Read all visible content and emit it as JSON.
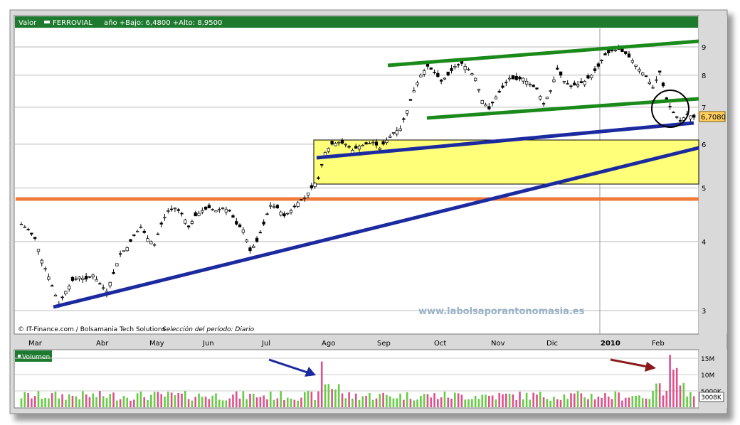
{
  "header": {
    "label": "Valor",
    "ticker": "FERROVIAL",
    "stats": "año +Bajo: 6,4800 +Alto: 8,9500"
  },
  "footer": {
    "credit": "© IT-Finance.com / Bolsamania Tech Solutions",
    "period": "Selección del período: Diario"
  },
  "watermark": "www.labolsaporantonomasia.es",
  "volume_label": "Volumen",
  "colors": {
    "up_candle": "#ffffff",
    "down_candle": "#000000",
    "trend_green": "#1a8a1a",
    "trend_blue": "#1c2aa0",
    "support_orange": "#f07a3a",
    "zone_yellow": "#ffff7a",
    "volume_up": "#66cc44",
    "volume_down": "#e0508a",
    "header_green": "#1e7a2e"
  },
  "chart_data": {
    "type": "candlestick",
    "ticker": "FERROVIAL",
    "x_tick_labels": [
      "Mar",
      "Abr",
      "May",
      "Jun",
      "Jul",
      "Ago",
      "Sep",
      "Oct",
      "Nov",
      "Dic",
      "2010",
      "Feb"
    ],
    "y_tick_labels": [
      "3",
      "4",
      "5",
      "6",
      "7",
      "8",
      "9"
    ],
    "y_scale": "log",
    "last_price": "6,7080",
    "price_path": [
      [
        0,
        4.3
      ],
      [
        2,
        4.2
      ],
      [
        4,
        4.05
      ],
      [
        6,
        3.7
      ],
      [
        8,
        3.45
      ],
      [
        10,
        3.2
      ],
      [
        11,
        3.08
      ],
      [
        13,
        3.25
      ],
      [
        15,
        3.4
      ],
      [
        17,
        3.45
      ],
      [
        19,
        3.42
      ],
      [
        21,
        3.48
      ],
      [
        23,
        3.35
      ],
      [
        25,
        3.25
      ],
      [
        27,
        3.5
      ],
      [
        29,
        3.8
      ],
      [
        31,
        3.9
      ],
      [
        33,
        4.1
      ],
      [
        35,
        4.25
      ],
      [
        37,
        4.05
      ],
      [
        39,
        3.95
      ],
      [
        41,
        4.3
      ],
      [
        43,
        4.55
      ],
      [
        45,
        4.6
      ],
      [
        47,
        4.5
      ],
      [
        49,
        4.25
      ],
      [
        51,
        4.45
      ],
      [
        53,
        4.55
      ],
      [
        55,
        4.6
      ],
      [
        57,
        4.55
      ],
      [
        59,
        4.6
      ],
      [
        61,
        4.55
      ],
      [
        63,
        4.3
      ],
      [
        65,
        4.2
      ],
      [
        67,
        3.85
      ],
      [
        69,
        4.0
      ],
      [
        71,
        4.3
      ],
      [
        73,
        4.65
      ],
      [
        75,
        4.6
      ],
      [
        77,
        4.45
      ],
      [
        79,
        4.55
      ],
      [
        81,
        4.7
      ],
      [
        83,
        4.8
      ],
      [
        85,
        5.0
      ],
      [
        87,
        5.2
      ],
      [
        89,
        5.8
      ],
      [
        91,
        6.0
      ],
      [
        93,
        6.05
      ],
      [
        95,
        6.0
      ],
      [
        97,
        5.85
      ],
      [
        99,
        5.95
      ],
      [
        101,
        6.0
      ],
      [
        103,
        6.05
      ],
      [
        105,
        5.9
      ],
      [
        107,
        6.1
      ],
      [
        109,
        6.3
      ],
      [
        111,
        6.4
      ],
      [
        113,
        6.9
      ],
      [
        115,
        7.5
      ],
      [
        117,
        8.0
      ],
      [
        119,
        8.3
      ],
      [
        121,
        8.1
      ],
      [
        123,
        7.8
      ],
      [
        125,
        8.0
      ],
      [
        127,
        8.3
      ],
      [
        129,
        8.4
      ],
      [
        131,
        8.2
      ],
      [
        133,
        7.9
      ],
      [
        135,
        7.2
      ],
      [
        137,
        6.95
      ],
      [
        139,
        7.3
      ],
      [
        141,
        7.6
      ],
      [
        143,
        7.9
      ],
      [
        145,
        7.85
      ],
      [
        147,
        7.9
      ],
      [
        149,
        7.7
      ],
      [
        151,
        7.55
      ],
      [
        153,
        7.1
      ],
      [
        155,
        7.5
      ],
      [
        157,
        8.2
      ],
      [
        159,
        7.8
      ],
      [
        161,
        7.65
      ],
      [
        163,
        7.7
      ],
      [
        165,
        7.8
      ],
      [
        167,
        8.0
      ],
      [
        169,
        8.3
      ],
      [
        171,
        8.7
      ],
      [
        173,
        8.85
      ],
      [
        175,
        8.9
      ],
      [
        177,
        8.75
      ],
      [
        179,
        8.5
      ],
      [
        181,
        8.2
      ],
      [
        183,
        7.95
      ],
      [
        185,
        7.6
      ],
      [
        187,
        8.1
      ],
      [
        189,
        7.2
      ],
      [
        191,
        6.85
      ],
      [
        193,
        6.6
      ],
      [
        195,
        6.8
      ],
      [
        197,
        6.71
      ]
    ],
    "volume_tick_labels": [
      "15M",
      "10M",
      "5000K"
    ],
    "last_volume": "3008K",
    "volume_spikes": [
      {
        "label": "Ago",
        "value_m": 14
      },
      {
        "label": "Feb",
        "value_m": 16
      }
    ]
  }
}
